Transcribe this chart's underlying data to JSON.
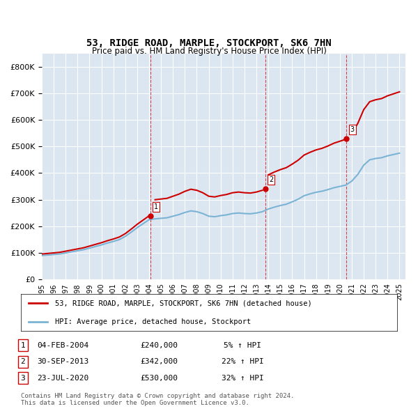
{
  "title": "53, RIDGE ROAD, MARPLE, STOCKPORT, SK6 7HN",
  "subtitle": "Price paid vs. HM Land Registry's House Price Index (HPI)",
  "ylabel": "",
  "background_color": "#ffffff",
  "plot_bg_color": "#dce6f1",
  "grid_color": "#ffffff",
  "hpi_color": "#7ab3d4",
  "price_color": "#cc0000",
  "transactions": [
    {
      "date": 2004.09,
      "price": 240000,
      "label": "1"
    },
    {
      "date": 2013.75,
      "price": 342000,
      "label": "2"
    },
    {
      "date": 2020.56,
      "price": 530000,
      "label": "3"
    }
  ],
  "transaction_dates_dashed": [
    2004.09,
    2013.75,
    2020.56
  ],
  "legend_label_price": "53, RIDGE ROAD, MARPLE, STOCKPORT, SK6 7HN (detached house)",
  "legend_label_hpi": "HPI: Average price, detached house, Stockport",
  "table_rows": [
    {
      "num": "1",
      "date": "04-FEB-2004",
      "price": "£240,000",
      "pct": "5% ↑ HPI"
    },
    {
      "num": "2",
      "date": "30-SEP-2013",
      "price": "£342,000",
      "pct": "22% ↑ HPI"
    },
    {
      "num": "3",
      "date": "23-JUL-2020",
      "price": "£530,000",
      "pct": "32% ↑ HPI"
    }
  ],
  "footer": "Contains HM Land Registry data © Crown copyright and database right 2024.\nThis data is licensed under the Open Government Licence v3.0.",
  "ylim": [
    0,
    850000
  ],
  "xlim_start": 1995.0,
  "xlim_end": 2025.5
}
